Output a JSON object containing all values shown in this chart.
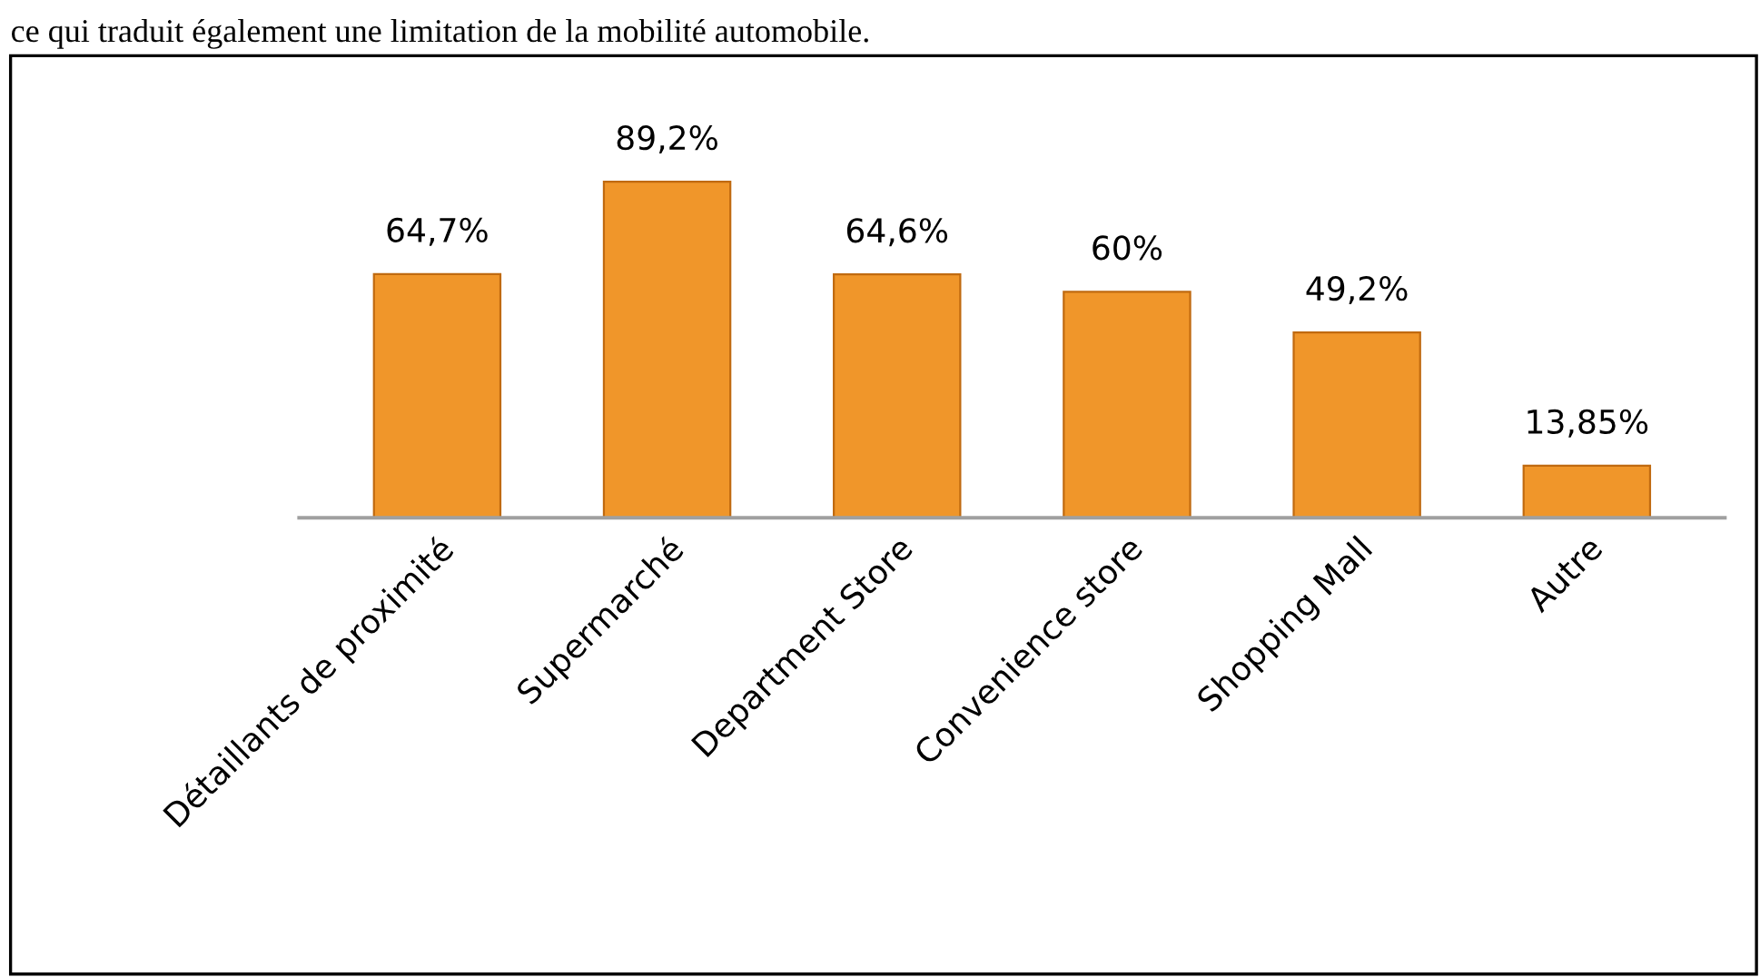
{
  "chart_data": {
    "type": "bar",
    "categories": [
      "Détaillants de proximité",
      "Supermarché",
      "Department Store",
      "Convenience store",
      "Shopping Mall",
      "Autre"
    ],
    "values": [
      64.7,
      89.2,
      64.6,
      60,
      49.2,
      13.85
    ],
    "value_labels": [
      "64,7%",
      "89,2%",
      "64,6%",
      "60%",
      "49,2%",
      "13,85%"
    ],
    "color": "#f0962a",
    "grid": false,
    "legend": false,
    "annotations": [
      "ce qui traduit également une limitation de la mobilité automobile."
    ]
  }
}
